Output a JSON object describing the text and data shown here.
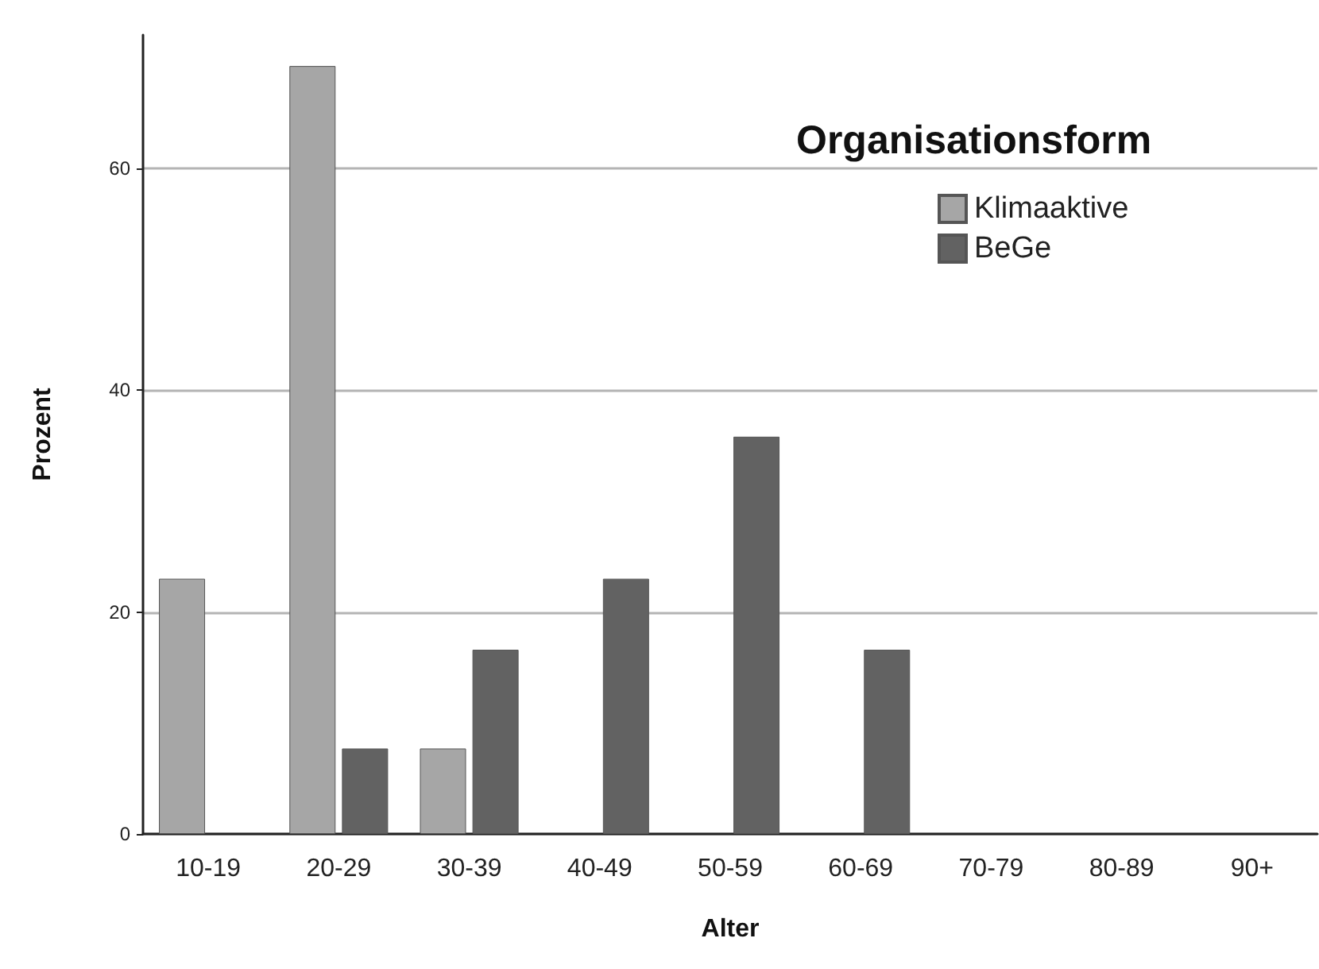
{
  "chart_data": {
    "type": "bar",
    "xlabel": "Alter",
    "ylabel": "Prozent",
    "legend_title": "Organisationsform",
    "categories": [
      "10-19",
      "20-29",
      "30-39",
      "40-49",
      "50-59",
      "60-69",
      "70-79",
      "80-89",
      "90+"
    ],
    "series": [
      {
        "name": "Klimaaktive",
        "color": "#a6a6a6",
        "values": [
          23.0,
          69.2,
          7.7,
          null,
          null,
          null,
          null,
          null,
          null
        ]
      },
      {
        "name": "BeGe",
        "color": "#626262",
        "values": [
          null,
          7.7,
          16.6,
          23.0,
          35.8,
          16.6,
          null,
          null,
          null
        ]
      }
    ],
    "ylim": [
      0,
      72
    ],
    "yticks": [
      0,
      20,
      40,
      60
    ],
    "grid": "y",
    "legend": "top right"
  }
}
